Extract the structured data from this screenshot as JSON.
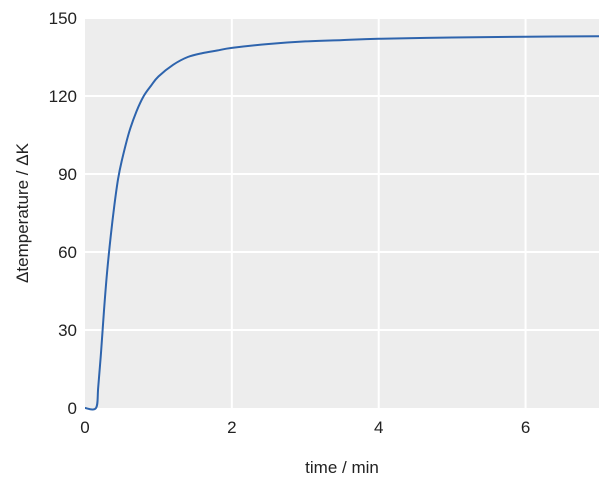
{
  "chart_data": {
    "type": "line",
    "title": "",
    "xlabel": "time / min",
    "ylabel": "Δtemperature / ΔK",
    "xlim": [
      0,
      7
    ],
    "ylim": [
      0,
      150
    ],
    "x_ticks": [
      0,
      2,
      4,
      6
    ],
    "y_ticks": [
      0,
      30,
      60,
      90,
      120,
      150
    ],
    "grid": true,
    "legend": "none",
    "colors": {
      "plot_background": "#ededed",
      "grid": "#ffffff",
      "line": "#2e64ad"
    },
    "series": [
      {
        "x": [
          0,
          0.15,
          0.18,
          0.22,
          0.26,
          0.3,
          0.35,
          0.4,
          0.45,
          0.5,
          0.6,
          0.7,
          0.8,
          0.9,
          1.0,
          1.2,
          1.4,
          1.6,
          1.8,
          2.0,
          2.5,
          3.0,
          3.5,
          4.0,
          5.0,
          6.0,
          7.0
        ],
        "y": [
          0,
          0,
          8,
          22,
          38,
          52,
          66,
          78,
          88,
          95,
          106,
          114,
          120,
          124,
          127.5,
          132,
          135,
          136.5,
          137.5,
          138.5,
          140,
          141,
          141.5,
          142,
          142.5,
          142.8,
          143
        ]
      }
    ]
  }
}
